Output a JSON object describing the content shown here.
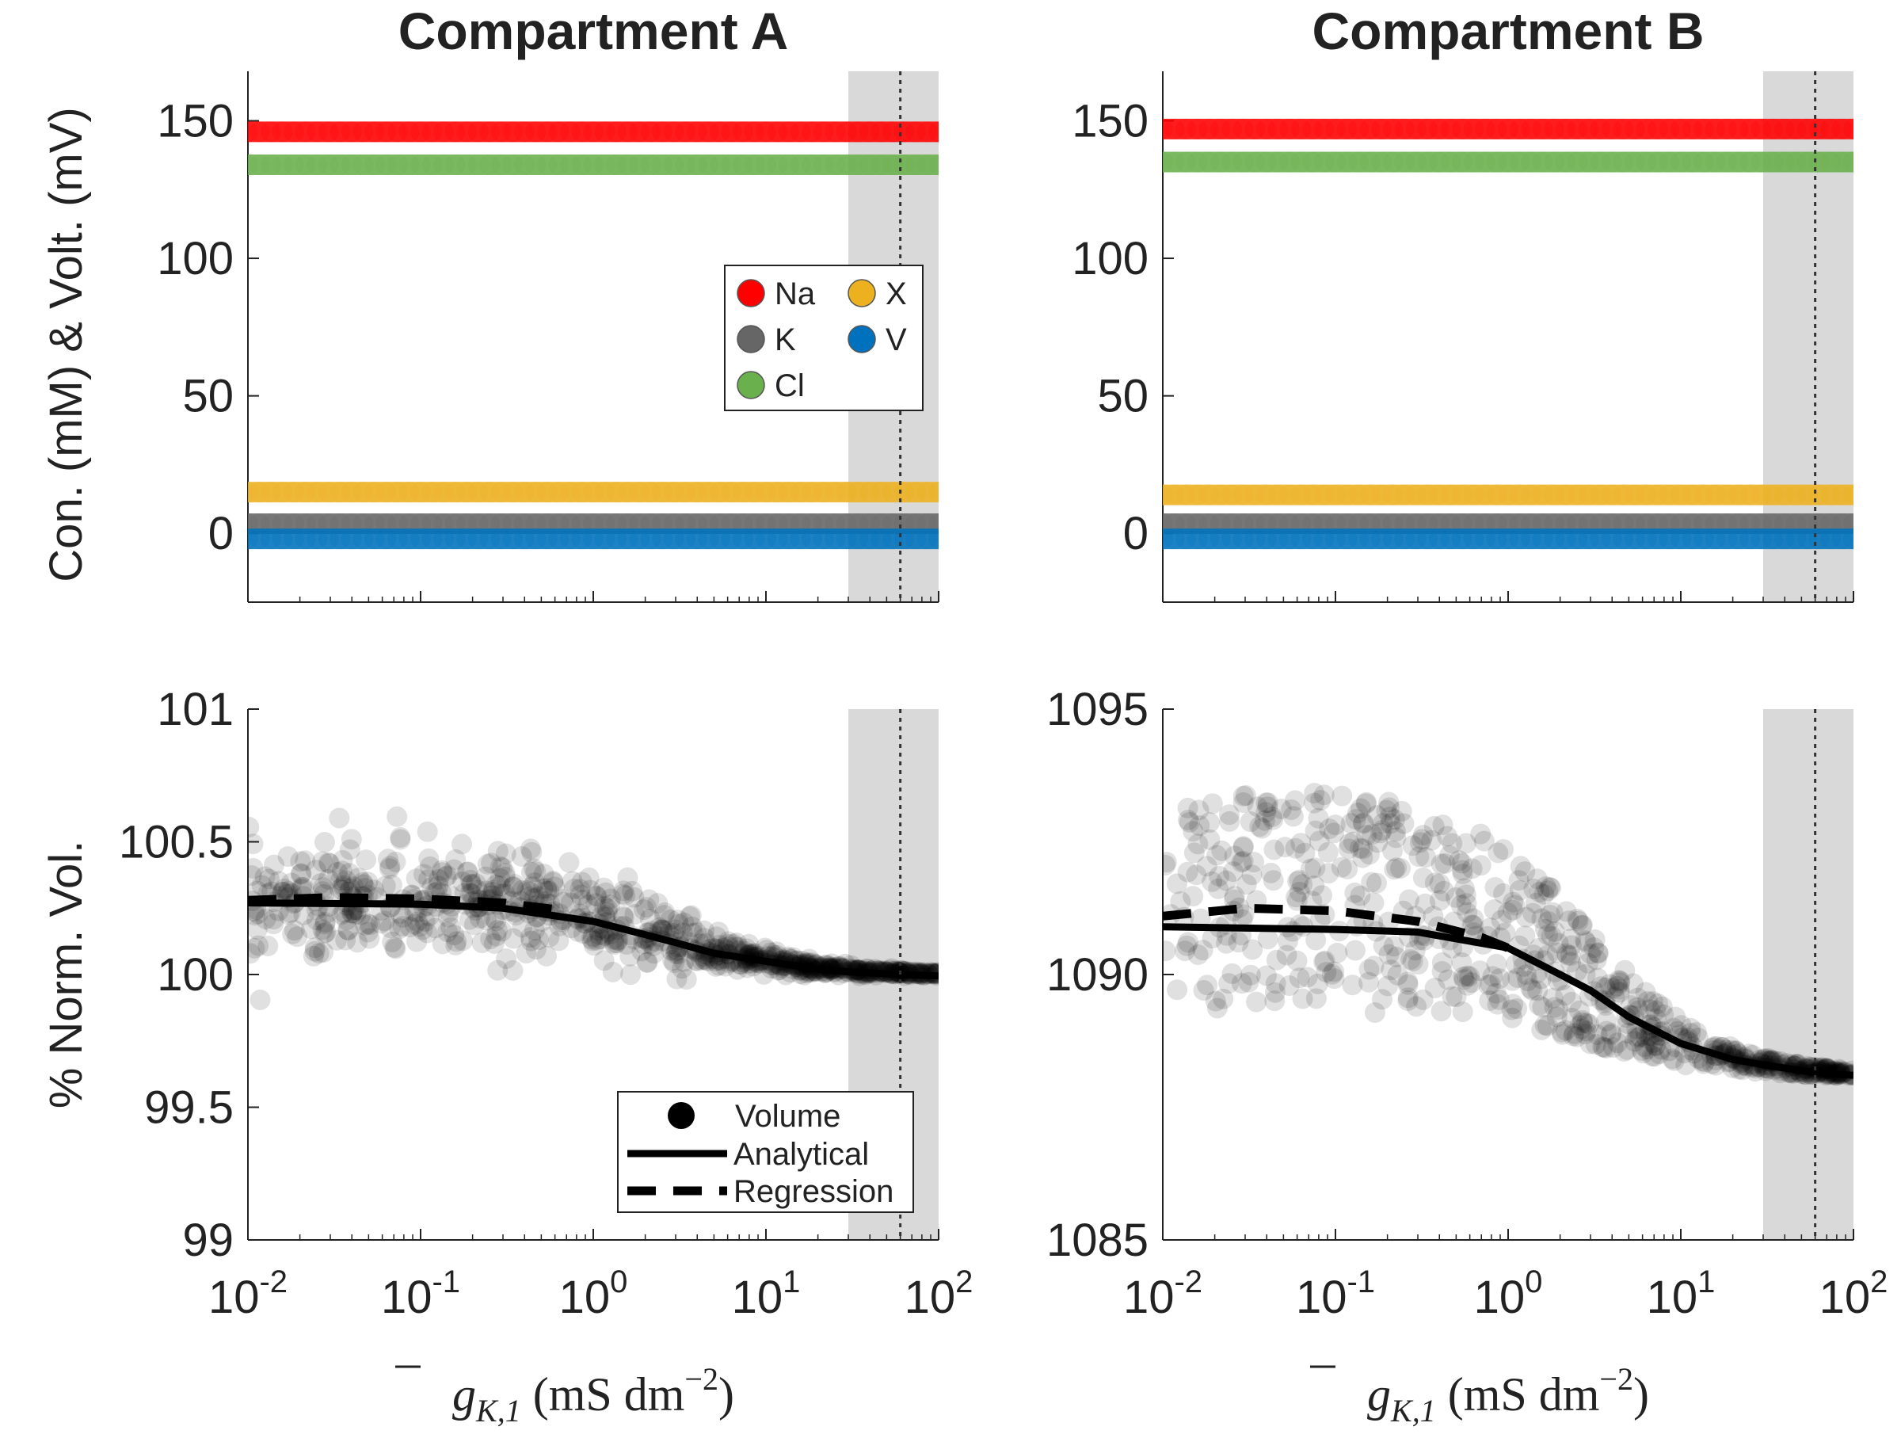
{
  "colors": {
    "Na": "#ff0000",
    "K": "#666666",
    "Cl": "#6ab04c",
    "X": "#edb120",
    "V": "#0072bd",
    "scatter": "#000000",
    "shade": "#d9d9d9"
  },
  "chart_data": [
    {
      "type": "line",
      "panel": "top-left",
      "title": "Compartment A",
      "ylabel": "Con. (mM) & Volt. (mV)",
      "xscale": "log",
      "xlim": [
        0.01,
        100
      ],
      "ylim": [
        -25,
        168
      ],
      "yticks": [
        "0",
        "50",
        "100",
        "150"
      ],
      "xticks": [
        {
          "base": "10",
          "exp": "-2"
        },
        {
          "base": "10",
          "exp": "-1"
        },
        {
          "base": "10",
          "exp": "0"
        },
        {
          "base": "10",
          "exp": "1"
        },
        {
          "base": "10",
          "exp": "2"
        }
      ],
      "shaded_region": [
        30,
        100
      ],
      "vline": 60,
      "series": [
        {
          "name": "Na",
          "value": 146
        },
        {
          "name": "K",
          "value": 3.5
        },
        {
          "name": "Cl",
          "value": 134
        },
        {
          "name": "X",
          "value": 15
        },
        {
          "name": "V",
          "value": -2
        }
      ],
      "legend": {
        "position": "right",
        "entries": [
          "Na",
          "X",
          "K",
          "V",
          "Cl"
        ]
      }
    },
    {
      "type": "line",
      "panel": "top-right",
      "title": "Compartment B",
      "ylabel": "",
      "xscale": "log",
      "xlim": [
        0.01,
        100
      ],
      "ylim": [
        -25,
        168
      ],
      "yticks": [
        "0",
        "50",
        "100",
        "150"
      ],
      "xticks": [
        {
          "base": "10",
          "exp": "-2"
        },
        {
          "base": "10",
          "exp": "-1"
        },
        {
          "base": "10",
          "exp": "0"
        },
        {
          "base": "10",
          "exp": "1"
        },
        {
          "base": "10",
          "exp": "2"
        }
      ],
      "shaded_region": [
        30,
        100
      ],
      "vline": 60,
      "series": [
        {
          "name": "Na",
          "value": 147
        },
        {
          "name": "K",
          "value": 3.5
        },
        {
          "name": "Cl",
          "value": 135
        },
        {
          "name": "X",
          "value": 14
        },
        {
          "name": "V",
          "value": -2
        }
      ]
    },
    {
      "type": "scatter",
      "panel": "bottom-left",
      "ylabel": "% Norm. Vol.",
      "xlabel": {
        "main": "g",
        "sub": "K,1",
        "unit": " (mS dm",
        "exp": "−2",
        "close": ")"
      },
      "xscale": "log",
      "xlim": [
        0.01,
        100
      ],
      "ylim": [
        99,
        101
      ],
      "yticks": [
        "99",
        "99.5",
        "100",
        "100.5",
        "101"
      ],
      "xticks": [
        {
          "base": "10",
          "exp": "-2"
        },
        {
          "base": "10",
          "exp": "-1"
        },
        {
          "base": "10",
          "exp": "0"
        },
        {
          "base": "10",
          "exp": "1"
        },
        {
          "base": "10",
          "exp": "2"
        }
      ],
      "shaded_region": [
        30,
        100
      ],
      "vline": 60,
      "scatter_model": {
        "base": 100.0,
        "amplitude": 0.27,
        "midpoint": 3.0,
        "spread_low": 0.3,
        "spread_high": 0.005,
        "n": 800
      },
      "series": [
        {
          "name": "Analytical",
          "x": [
            0.01,
            0.1,
            0.3,
            1,
            2,
            3,
            5,
            10,
            20,
            30,
            60,
            100
          ],
          "y": [
            100.27,
            100.265,
            100.25,
            100.2,
            100.15,
            100.12,
            100.08,
            100.05,
            100.02,
            100.01,
            100.0,
            99.995
          ]
        },
        {
          "name": "Regression",
          "x": [
            0.01,
            0.03,
            0.1,
            0.3,
            0.7
          ],
          "y": [
            100.28,
            100.29,
            100.285,
            100.27,
            100.24
          ]
        }
      ],
      "legend": {
        "position": "bottom-right",
        "entries": [
          "Volume",
          "Analytical",
          "Regression"
        ]
      }
    },
    {
      "type": "scatter",
      "panel": "bottom-right",
      "ylabel": "",
      "xlabel": {
        "main": "g",
        "sub": "K,1",
        "unit": " (mS dm",
        "exp": "−2",
        "close": ")"
      },
      "xscale": "log",
      "xlim": [
        0.01,
        100
      ],
      "ylim": [
        1085,
        1095
      ],
      "yticks": [
        "1085",
        "1090",
        "1095"
      ],
      "xticks": [
        {
          "base": "10",
          "exp": "-2"
        },
        {
          "base": "10",
          "exp": "-1"
        },
        {
          "base": "10",
          "exp": "0"
        },
        {
          "base": "10",
          "exp": "1"
        },
        {
          "base": "10",
          "exp": "2"
        }
      ],
      "shaded_region": [
        30,
        100
      ],
      "vline": 60,
      "scatter_model": {
        "base": 1088.1,
        "amplitude": 3.3,
        "midpoint": 3.0,
        "spread_low": 4.2,
        "spread_high": 0.05,
        "n": 700
      },
      "series": [
        {
          "name": "Analytical",
          "x": [
            0.01,
            0.1,
            0.3,
            1,
            2,
            3,
            5,
            10,
            20,
            30,
            60,
            100
          ],
          "y": [
            1090.9,
            1090.85,
            1090.8,
            1090.5,
            1090.0,
            1089.7,
            1089.2,
            1088.7,
            1088.4,
            1088.3,
            1088.15,
            1088.1
          ]
        },
        {
          "name": "Regression",
          "x": [
            0.01,
            0.03,
            0.1,
            0.3,
            0.7,
            1
          ],
          "y": [
            1091.1,
            1091.25,
            1091.2,
            1091.0,
            1090.7,
            1090.5
          ]
        }
      ]
    }
  ]
}
